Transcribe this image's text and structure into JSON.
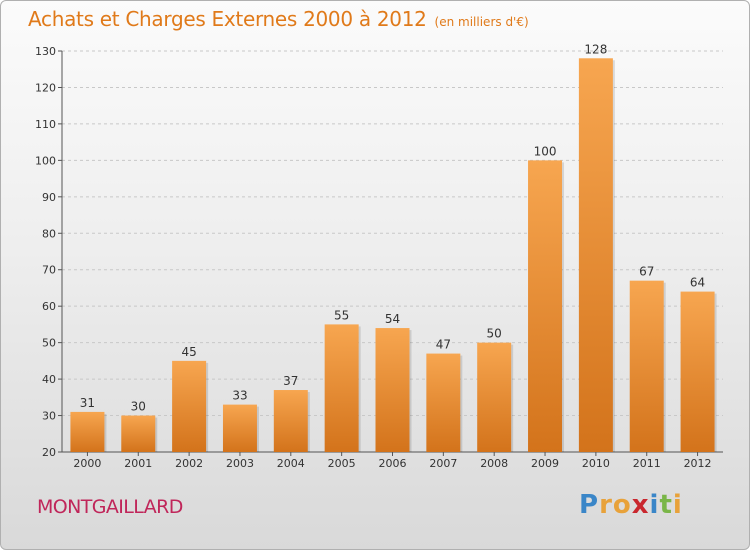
{
  "title": "Achats et Charges Externes 2000 à 2012",
  "subtitle": "(en milliers d'€)",
  "town": "MONTGAILLARD",
  "logo": {
    "text": "Proxiti",
    "letters": [
      "P",
      "r",
      "o",
      "x",
      "i",
      "t",
      "i"
    ],
    "colors": [
      "#3a86c8",
      "#e8a23a",
      "#e8a23a",
      "#c9272e",
      "#3a86c8",
      "#7ab648",
      "#e8a23a"
    ]
  },
  "colors": {
    "bar_top": "#f7a650",
    "bar_bottom": "#d3731b",
    "title": "#e07a1a",
    "town": "#c0265a",
    "axis": "#555555",
    "grid": "#c8c8c8"
  },
  "chart_data": {
    "type": "bar",
    "title": "Achats et Charges Externes 2000 à 2012",
    "subtitle": "(en milliers d'€)",
    "categories": [
      "2000",
      "2001",
      "2002",
      "2003",
      "2004",
      "2005",
      "2006",
      "2007",
      "2008",
      "2009",
      "2010",
      "2011",
      "2012"
    ],
    "values": [
      31,
      30,
      45,
      33,
      37,
      55,
      54,
      47,
      50,
      100,
      128,
      67,
      64
    ],
    "ylim": [
      20,
      130
    ],
    "yticks": [
      20,
      30,
      40,
      50,
      60,
      70,
      80,
      90,
      100,
      110,
      120,
      130
    ],
    "grid": "horizontal dashed",
    "xlabel": "",
    "ylabel": ""
  }
}
